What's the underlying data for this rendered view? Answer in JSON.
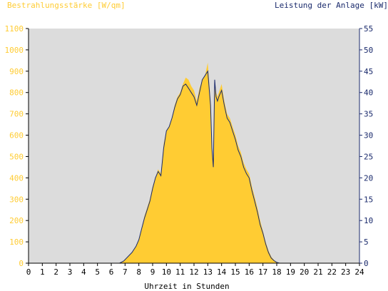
{
  "chart_data": {
    "type": "area",
    "left_axis_title": "Bestrahlungsstärke [W/qm]",
    "right_axis_title": "Leistung der Anlage [kW]",
    "xlabel": "Uhrzeit in Stunden",
    "xlim": [
      0,
      24
    ],
    "x_ticks": [
      "0",
      "1",
      "2",
      "3",
      "4",
      "5",
      "6",
      "7",
      "8",
      "9",
      "10",
      "11",
      "12",
      "13",
      "14",
      "15",
      "16",
      "17",
      "18",
      "19",
      "20",
      "21",
      "22",
      "23",
      "24"
    ],
    "y_left_lim": [
      0,
      1100
    ],
    "y_left_ticks": [
      "0",
      "100",
      "200",
      "300",
      "400",
      "500",
      "600",
      "700",
      "800",
      "900",
      "1000",
      "1100"
    ],
    "y_right_lim": [
      0,
      55
    ],
    "y_right_ticks": [
      "0",
      "5",
      "10",
      "15",
      "20",
      "25",
      "30",
      "35",
      "40",
      "45",
      "50",
      "55"
    ],
    "grid": false,
    "colors": {
      "irradiance": "#ffcc33",
      "power": "#1a2a6c",
      "plot_bg": "#dcdcdc",
      "left_axis": "#ffcc33",
      "right_axis": "#1a2a6c"
    },
    "series": [
      {
        "name": "Bestrahlungsstärke",
        "axis": "left",
        "x": [
          0,
          6.6,
          6.9,
          7.2,
          7.5,
          7.8,
          8.0,
          8.2,
          8.4,
          8.6,
          8.8,
          9.0,
          9.2,
          9.4,
          9.6,
          9.8,
          10.0,
          10.2,
          10.4,
          10.6,
          10.8,
          11.0,
          11.2,
          11.4,
          11.6,
          11.8,
          12.0,
          12.2,
          12.4,
          12.6,
          12.8,
          13.0,
          13.2,
          13.3,
          13.4,
          13.5,
          13.6,
          13.7,
          13.8,
          14.0,
          14.2,
          14.4,
          14.6,
          14.8,
          15.0,
          15.2,
          15.4,
          15.6,
          15.8,
          16.0,
          16.2,
          16.4,
          16.6,
          16.8,
          17.0,
          17.2,
          17.4,
          17.6,
          17.8,
          18.0,
          18.2,
          18.4,
          18.6,
          19.0,
          24
        ],
        "values": [
          0,
          0,
          10,
          30,
          50,
          80,
          110,
          160,
          220,
          260,
          300,
          360,
          400,
          440,
          420,
          560,
          620,
          640,
          680,
          740,
          780,
          800,
          840,
          870,
          860,
          830,
          810,
          760,
          820,
          860,
          880,
          940,
          760,
          560,
          460,
          860,
          800,
          780,
          800,
          840,
          760,
          700,
          680,
          640,
          600,
          550,
          520,
          470,
          440,
          420,
          360,
          310,
          260,
          200,
          150,
          100,
          60,
          30,
          15,
          5,
          2,
          0,
          0,
          0,
          0
        ]
      },
      {
        "name": "Leistung",
        "axis": "right",
        "x": [
          0,
          6.6,
          6.9,
          7.2,
          7.5,
          7.8,
          8.0,
          8.2,
          8.4,
          8.6,
          8.8,
          9.0,
          9.2,
          9.4,
          9.6,
          9.8,
          10.0,
          10.2,
          10.4,
          10.6,
          10.8,
          11.0,
          11.2,
          11.4,
          11.6,
          11.8,
          12.0,
          12.2,
          12.4,
          12.6,
          12.8,
          13.0,
          13.2,
          13.3,
          13.4,
          13.5,
          13.6,
          13.7,
          13.8,
          14.0,
          14.2,
          14.4,
          14.6,
          14.8,
          15.0,
          15.2,
          15.4,
          15.6,
          15.8,
          16.0,
          16.2,
          16.4,
          16.6,
          16.8,
          17.0,
          17.2,
          17.4,
          17.6,
          17.8,
          18.0,
          18.2,
          18.4,
          18.6,
          19.0,
          24
        ],
        "values": [
          0,
          0,
          0.5,
          1.5,
          2.5,
          4,
          5.5,
          8,
          10.5,
          12.5,
          14.5,
          17.5,
          20,
          21.5,
          20.5,
          27,
          31,
          32,
          34,
          36.5,
          38.5,
          39.5,
          41.5,
          42,
          41,
          40,
          39,
          37,
          40,
          43,
          44,
          45,
          37,
          27,
          22.5,
          43,
          39,
          38,
          39,
          40.5,
          37,
          34,
          33,
          31,
          29,
          26.5,
          25,
          22.5,
          21,
          20,
          17,
          14.5,
          12,
          9,
          7,
          4.5,
          2.5,
          1.2,
          0.6,
          0.2,
          0,
          0,
          0,
          0,
          0
        ]
      }
    ]
  }
}
